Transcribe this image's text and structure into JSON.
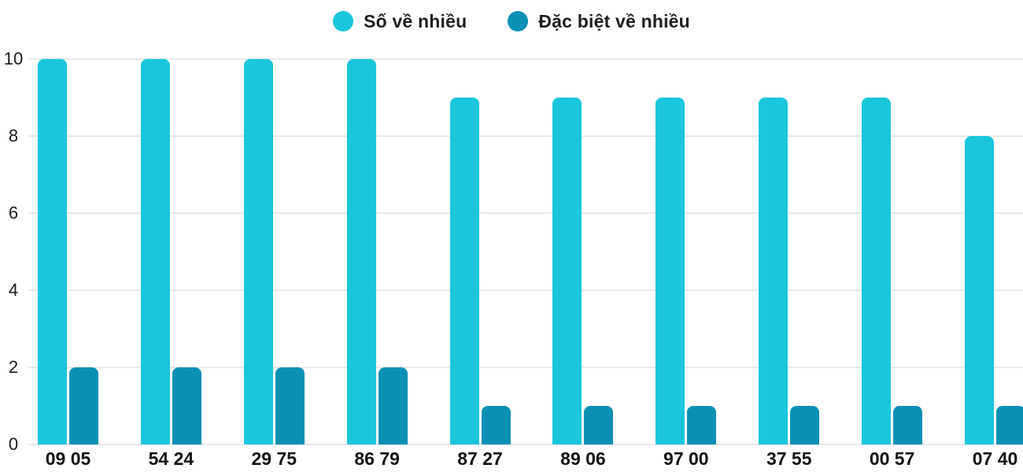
{
  "colors": {
    "series1": "#1BC6DC",
    "series2": "#0B90B4",
    "grid": "#E9E9E9",
    "text": "#1F1F1F",
    "background": "#FFFFFF"
  },
  "legend": {
    "items": [
      {
        "label": "Số về nhiều",
        "color": "#1BC6DC"
      },
      {
        "label": "Đặc biệt về nhiều",
        "color": "#0B90B4"
      }
    ]
  },
  "chart_data": {
    "type": "bar",
    "categories": [
      "09 05",
      "54 24",
      "29 75",
      "86 79",
      "87 27",
      "89 06",
      "97 00",
      "37 55",
      "00 57",
      "07 40"
    ],
    "series": [
      {
        "name": "Số về nhiều",
        "color": "#1BC6DC",
        "values": [
          10,
          10,
          10,
          10,
          9,
          9,
          9,
          9,
          9,
          8
        ]
      },
      {
        "name": "Đặc biệt về nhiều",
        "color": "#0B90B4",
        "values": [
          2,
          2,
          2,
          2,
          1,
          1,
          1,
          1,
          1,
          1
        ]
      }
    ],
    "title": "",
    "xlabel": "",
    "ylabel": "",
    "ylim": [
      0,
      10
    ],
    "yticks": [
      0,
      2,
      4,
      6,
      8,
      10
    ],
    "grid": true,
    "legend_position": "top"
  }
}
